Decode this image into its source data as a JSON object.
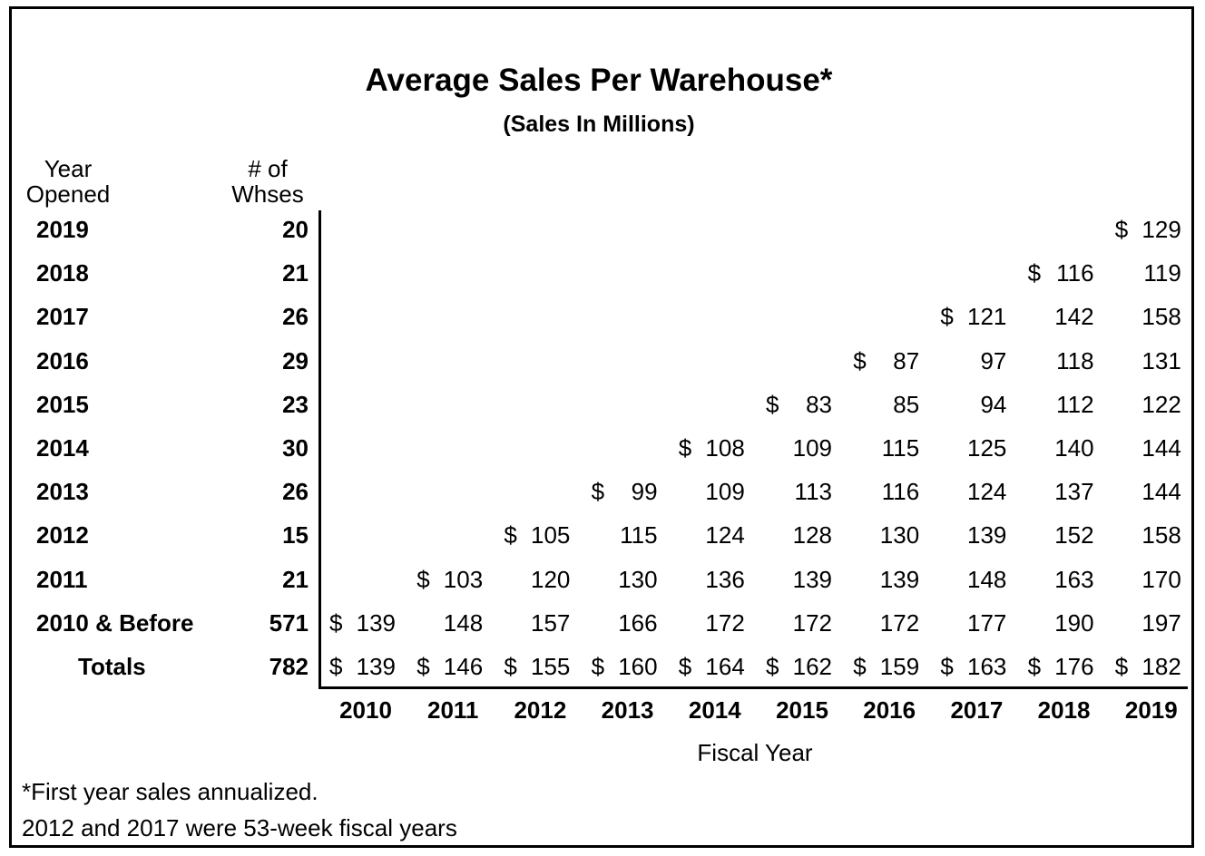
{
  "chart_data": {
    "type": "table",
    "title": "Average Sales Per Warehouse*",
    "subtitle": "(Sales In Millions)",
    "row_header_year": "Year Opened",
    "row_header_count": "# of Whses",
    "xlabel": "Fiscal Year",
    "currency_symbol": "$",
    "fiscal_years": [
      "2010",
      "2011",
      "2012",
      "2013",
      "2014",
      "2015",
      "2016",
      "2017",
      "2018",
      "2019"
    ],
    "rows": [
      {
        "label": "2019",
        "warehouses": "20",
        "start_index": 9,
        "values": [
          129
        ]
      },
      {
        "label": "2018",
        "warehouses": "21",
        "start_index": 8,
        "values": [
          116,
          119
        ]
      },
      {
        "label": "2017",
        "warehouses": "26",
        "start_index": 7,
        "values": [
          121,
          142,
          158
        ]
      },
      {
        "label": "2016",
        "warehouses": "29",
        "start_index": 6,
        "values": [
          87,
          97,
          118,
          131
        ]
      },
      {
        "label": "2015",
        "warehouses": "23",
        "start_index": 5,
        "values": [
          83,
          85,
          94,
          112,
          122
        ]
      },
      {
        "label": "2014",
        "warehouses": "30",
        "start_index": 4,
        "values": [
          108,
          109,
          115,
          125,
          140,
          144
        ]
      },
      {
        "label": "2013",
        "warehouses": "26",
        "start_index": 3,
        "values": [
          99,
          109,
          113,
          116,
          124,
          137,
          144
        ]
      },
      {
        "label": "2012",
        "warehouses": "15",
        "start_index": 2,
        "values": [
          105,
          115,
          124,
          128,
          130,
          139,
          152,
          158
        ]
      },
      {
        "label": "2011",
        "warehouses": "21",
        "start_index": 1,
        "values": [
          103,
          120,
          130,
          136,
          139,
          139,
          148,
          163,
          170
        ]
      },
      {
        "label": "2010 & Before",
        "warehouses": "571",
        "start_index": 0,
        "values": [
          139,
          148,
          157,
          166,
          172,
          172,
          172,
          177,
          190,
          197
        ]
      }
    ],
    "totals": {
      "label": "Totals",
      "warehouses": "782",
      "values": [
        139,
        146,
        155,
        160,
        164,
        162,
        159,
        163,
        176,
        182
      ]
    },
    "notes": [
      "*First year sales annualized.",
      "2012 and 2017 were 53-week fiscal years"
    ]
  }
}
